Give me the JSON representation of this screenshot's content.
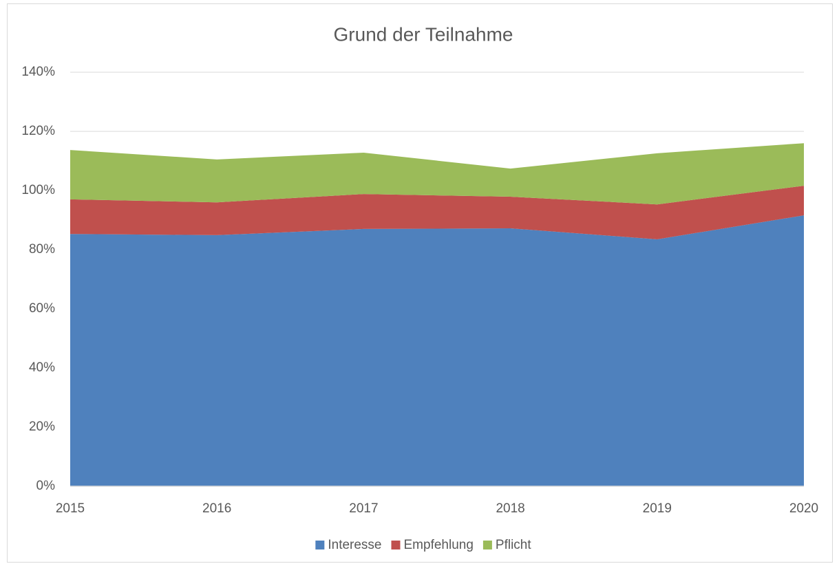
{
  "chart_data": {
    "type": "stacked_area",
    "title": "Grund der Teilnahme",
    "categories": [
      "2015",
      "2016",
      "2017",
      "2018",
      "2019",
      "2020"
    ],
    "series": [
      {
        "name": "Interesse",
        "color": "#4f81bd",
        "values": [
          85.3,
          84.9,
          87,
          87.2,
          83.5,
          91.6
        ]
      },
      {
        "name": "Empfehlung",
        "color": "#c0504d",
        "values": [
          11.7,
          11.1,
          11.8,
          10.7,
          11.8,
          10
        ]
      },
      {
        "name": "Pflicht",
        "color": "#9bbb59",
        "values": [
          16.7,
          14.5,
          14,
          9.5,
          17.3,
          14.4
        ]
      }
    ],
    "ylim": [
      0,
      140
    ],
    "yticks": [
      {
        "value": 0,
        "label": "0%"
      },
      {
        "value": 20,
        "label": "20%"
      },
      {
        "value": 40,
        "label": "40%"
      },
      {
        "value": 60,
        "label": "60%"
      },
      {
        "value": 80,
        "label": "80%"
      },
      {
        "value": 100,
        "label": "100%"
      },
      {
        "value": 120,
        "label": "120%"
      },
      {
        "value": 140,
        "label": "140%"
      }
    ],
    "grid": true,
    "legend": "bottom"
  }
}
